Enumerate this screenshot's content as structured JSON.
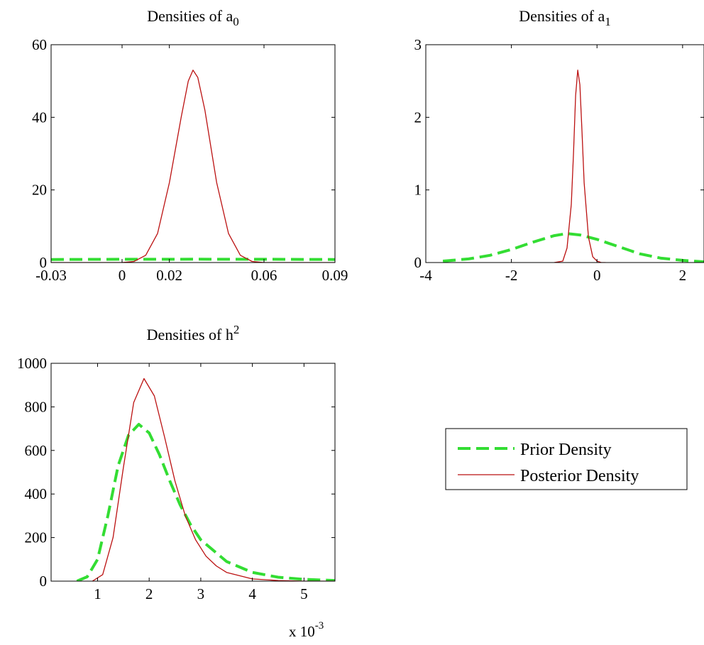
{
  "colors": {
    "prior": "#33dd33",
    "posterior": "#bb1111",
    "axis": "#000000",
    "background": "#ffffff"
  },
  "legend": {
    "placement": "right-middle",
    "entries": [
      {
        "label": "Prior Density",
        "style": "dashed",
        "color": "#33dd33"
      },
      {
        "label": "Posterior Density",
        "style": "solid",
        "color": "#bb1111"
      }
    ]
  },
  "chart_data": [
    {
      "type": "line",
      "title": {
        "text": "Densities of a",
        "subscript": "0",
        "superscript": ""
      },
      "xlim": [
        -0.03,
        0.09
      ],
      "ylim": [
        0,
        60
      ],
      "xticks": [
        -0.03,
        0,
        0.02,
        0.06,
        0.09
      ],
      "xtick_labels": [
        "-0.03",
        "0",
        "0.02",
        "0.06",
        "0.09"
      ],
      "yticks": [
        0,
        20,
        40,
        60
      ],
      "ytick_labels": [
        "0",
        "20",
        "40",
        "60"
      ],
      "exponent_label": null,
      "series": [
        {
          "key": "prior",
          "x": [
            -0.03,
            0.0,
            0.03,
            0.06,
            0.09
          ],
          "y": [
            0.85,
            0.9,
            0.92,
            0.9,
            0.85
          ]
        },
        {
          "key": "posterior",
          "x": [
            -0.03,
            0.0,
            0.005,
            0.01,
            0.015,
            0.02,
            0.025,
            0.028,
            0.03,
            0.032,
            0.035,
            0.04,
            0.045,
            0.05,
            0.055,
            0.06,
            0.09
          ],
          "y": [
            0,
            0,
            0.3,
            2,
            8,
            22,
            40,
            50,
            53,
            51,
            42,
            22,
            8,
            2,
            0.3,
            0,
            0
          ]
        }
      ]
    },
    {
      "type": "line",
      "title": {
        "text": "Densities of a",
        "subscript": "1",
        "superscript": ""
      },
      "xlim": [
        -4,
        2.5
      ],
      "ylim": [
        0,
        3
      ],
      "xticks": [
        -4,
        -2,
        0,
        2
      ],
      "xtick_labels": [
        "-4",
        "-2",
        "0",
        "2"
      ],
      "yticks": [
        0,
        1,
        2,
        3
      ],
      "ytick_labels": [
        "0",
        "1",
        "2",
        "3"
      ],
      "exponent_label": null,
      "series": [
        {
          "key": "prior",
          "x": [
            -3.6,
            -3.0,
            -2.5,
            -2.0,
            -1.5,
            -1.0,
            -0.7,
            -0.4,
            0.0,
            0.5,
            1.0,
            1.5,
            2.0,
            2.5
          ],
          "y": [
            0.02,
            0.05,
            0.1,
            0.18,
            0.28,
            0.37,
            0.4,
            0.38,
            0.32,
            0.22,
            0.12,
            0.06,
            0.03,
            0.01
          ]
        },
        {
          "key": "posterior",
          "x": [
            -1.0,
            -0.8,
            -0.7,
            -0.6,
            -0.55,
            -0.5,
            -0.45,
            -0.4,
            -0.35,
            -0.3,
            -0.2,
            -0.1,
            0.0,
            0.1,
            0.2
          ],
          "y": [
            0,
            0.02,
            0.2,
            0.8,
            1.5,
            2.3,
            2.65,
            2.45,
            1.8,
            1.1,
            0.35,
            0.08,
            0.02,
            0,
            0
          ]
        }
      ]
    },
    {
      "type": "line",
      "title": {
        "text": "Densities of h",
        "subscript": "",
        "superscript": "2"
      },
      "xlim": [
        0.1,
        5.6
      ],
      "ylim": [
        0,
        1000
      ],
      "xticks": [
        1,
        2,
        3,
        4,
        5
      ],
      "xtick_labels": [
        "1",
        "2",
        "3",
        "4",
        "5"
      ],
      "yticks": [
        0,
        200,
        400,
        600,
        800,
        1000
      ],
      "ytick_labels": [
        "0",
        "200",
        "400",
        "600",
        "800",
        "1000"
      ],
      "exponent_label": {
        "base": "x 10",
        "power": "-3"
      },
      "series": [
        {
          "key": "prior",
          "x": [
            0.6,
            0.8,
            1.0,
            1.2,
            1.4,
            1.6,
            1.8,
            2.0,
            2.2,
            2.4,
            2.6,
            2.8,
            3.0,
            3.5,
            4.0,
            4.5,
            5.0,
            5.6
          ],
          "y": [
            0,
            20,
            100,
            300,
            530,
            670,
            720,
            680,
            580,
            460,
            350,
            260,
            190,
            90,
            40,
            18,
            8,
            3
          ]
        },
        {
          "key": "posterior",
          "x": [
            0.9,
            1.1,
            1.3,
            1.5,
            1.7,
            1.9,
            2.1,
            2.3,
            2.5,
            2.7,
            2.9,
            3.1,
            3.3,
            3.5,
            4.0,
            4.5,
            5.0,
            5.6
          ],
          "y": [
            0,
            30,
            200,
            520,
            820,
            930,
            850,
            660,
            460,
            300,
            190,
            115,
            70,
            40,
            10,
            3,
            0,
            0
          ]
        }
      ]
    }
  ]
}
